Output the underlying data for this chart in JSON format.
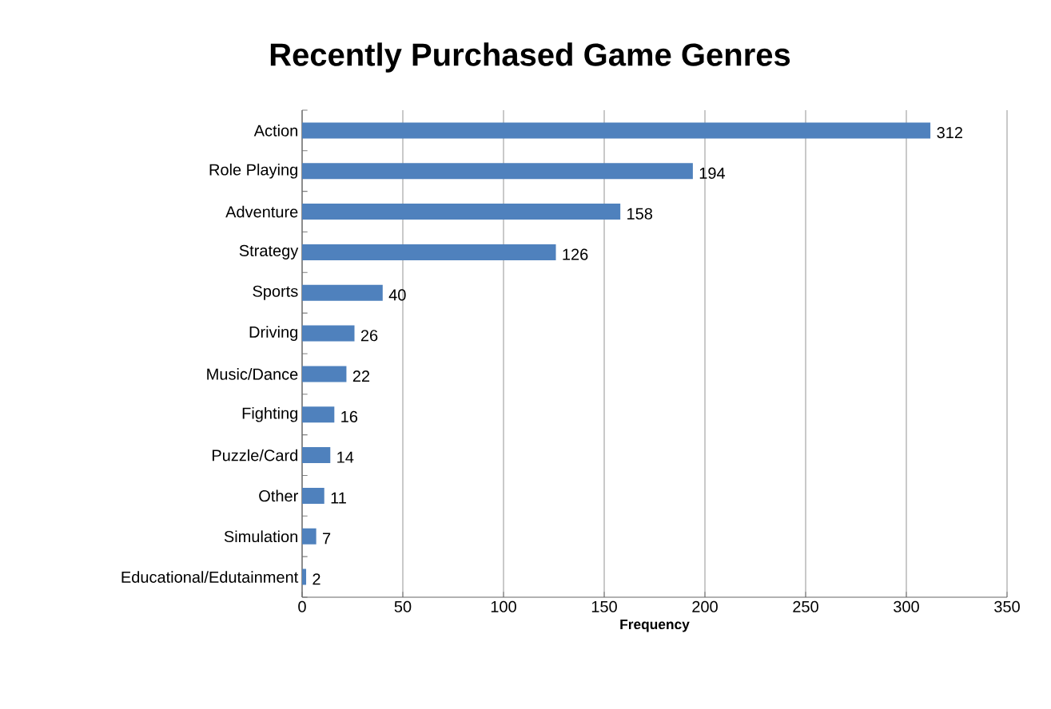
{
  "chart_data": {
    "type": "bar",
    "orientation": "horizontal",
    "title": "Recently Purchased Game Genres",
    "xlabel": "Frequency",
    "categories": [
      "Action",
      "Role Playing",
      "Adventure",
      "Strategy",
      "Sports",
      "Driving",
      "Music/Dance",
      "Fighting",
      "Puzzle/Card",
      "Other",
      "Simulation",
      "Educational/Edutainment"
    ],
    "values": [
      312,
      194,
      158,
      126,
      40,
      26,
      22,
      16,
      14,
      11,
      7,
      2
    ],
    "color": "#4f81bd",
    "xlim": [
      0,
      350
    ],
    "xticks": [
      0,
      50,
      100,
      150,
      200,
      250,
      300,
      350
    ],
    "grid": "x",
    "data_labels": true
  }
}
